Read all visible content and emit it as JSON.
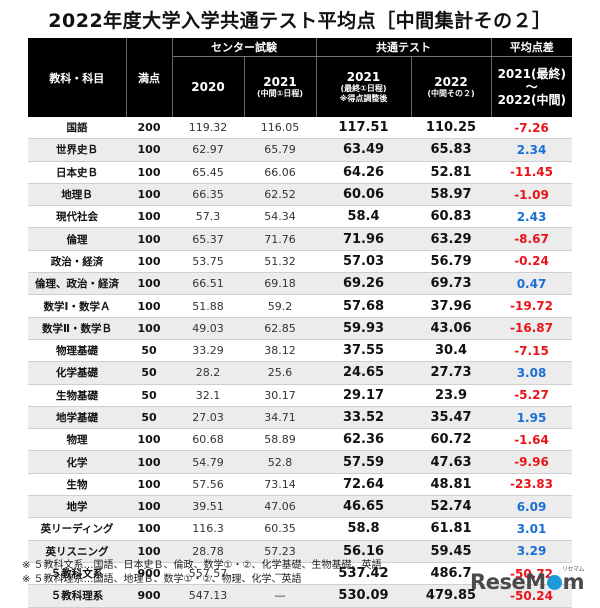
{
  "title": "2022年度大学入学共通テスト平均点［中間集計その２］",
  "header": {
    "subject": "教科・科目",
    "max_score": "満点",
    "center_group": "センター試験",
    "common_group": "共通テスト",
    "diff_group": "平均点差",
    "col_2020": "2020",
    "col_2021c": "2021",
    "col_2021c_sub": "(中間①日程)",
    "col_2021k": "2021",
    "col_2021k_sub1": "(最終①日程)",
    "col_2021k_sub2": "※得点調整後",
    "col_2022": "2022",
    "col_2022_sub": "(中間その２)",
    "diff_line1": "2021(最終)",
    "diff_line2": "〜",
    "diff_line3": "2022(中間)"
  },
  "rows": [
    {
      "subject": "国語",
      "max": "200",
      "c2020": "119.32",
      "c2021": "116.05",
      "k2021": "117.51",
      "k2022": "110.25",
      "diff": "-7.26",
      "sign": "neg"
    },
    {
      "subject": "世界史Ｂ",
      "max": "100",
      "c2020": "62.97",
      "c2021": "65.79",
      "k2021": "63.49",
      "k2022": "65.83",
      "diff": "2.34",
      "sign": "pos"
    },
    {
      "subject": "日本史Ｂ",
      "max": "100",
      "c2020": "65.45",
      "c2021": "66.06",
      "k2021": "64.26",
      "k2022": "52.81",
      "diff": "-11.45",
      "sign": "neg"
    },
    {
      "subject": "地理Ｂ",
      "max": "100",
      "c2020": "66.35",
      "c2021": "62.52",
      "k2021": "60.06",
      "k2022": "58.97",
      "diff": "-1.09",
      "sign": "neg"
    },
    {
      "subject": "現代社会",
      "max": "100",
      "c2020": "57.3",
      "c2021": "54.34",
      "k2021": "58.4",
      "k2022": "60.83",
      "diff": "2.43",
      "sign": "pos"
    },
    {
      "subject": "倫理",
      "max": "100",
      "c2020": "65.37",
      "c2021": "71.76",
      "k2021": "71.96",
      "k2022": "63.29",
      "diff": "-8.67",
      "sign": "neg"
    },
    {
      "subject": "政治・経済",
      "max": "100",
      "c2020": "53.75",
      "c2021": "51.32",
      "k2021": "57.03",
      "k2022": "56.79",
      "diff": "-0.24",
      "sign": "neg"
    },
    {
      "subject": "倫理、政治・経済",
      "max": "100",
      "c2020": "66.51",
      "c2021": "69.18",
      "k2021": "69.26",
      "k2022": "69.73",
      "diff": "0.47",
      "sign": "pos"
    },
    {
      "subject": "数学Ⅰ・数学Ａ",
      "max": "100",
      "c2020": "51.88",
      "c2021": "59.2",
      "k2021": "57.68",
      "k2022": "37.96",
      "diff": "-19.72",
      "sign": "neg"
    },
    {
      "subject": "数学Ⅱ・数学Ｂ",
      "max": "100",
      "c2020": "49.03",
      "c2021": "62.85",
      "k2021": "59.93",
      "k2022": "43.06",
      "diff": "-16.87",
      "sign": "neg"
    },
    {
      "subject": "物理基礎",
      "max": "50",
      "c2020": "33.29",
      "c2021": "38.12",
      "k2021": "37.55",
      "k2022": "30.4",
      "diff": "-7.15",
      "sign": "neg"
    },
    {
      "subject": "化学基礎",
      "max": "50",
      "c2020": "28.2",
      "c2021": "25.6",
      "k2021": "24.65",
      "k2022": "27.73",
      "diff": "3.08",
      "sign": "pos"
    },
    {
      "subject": "生物基礎",
      "max": "50",
      "c2020": "32.1",
      "c2021": "30.17",
      "k2021": "29.17",
      "k2022": "23.9",
      "diff": "-5.27",
      "sign": "neg"
    },
    {
      "subject": "地学基礎",
      "max": "50",
      "c2020": "27.03",
      "c2021": "34.71",
      "k2021": "33.52",
      "k2022": "35.47",
      "diff": "1.95",
      "sign": "pos"
    },
    {
      "subject": "物理",
      "max": "100",
      "c2020": "60.68",
      "c2021": "58.89",
      "k2021": "62.36",
      "k2022": "60.72",
      "diff": "-1.64",
      "sign": "neg"
    },
    {
      "subject": "化学",
      "max": "100",
      "c2020": "54.79",
      "c2021": "52.8",
      "k2021": "57.59",
      "k2022": "47.63",
      "diff": "-9.96",
      "sign": "neg"
    },
    {
      "subject": "生物",
      "max": "100",
      "c2020": "57.56",
      "c2021": "73.14",
      "k2021": "72.64",
      "k2022": "48.81",
      "diff": "-23.83",
      "sign": "neg"
    },
    {
      "subject": "地学",
      "max": "100",
      "c2020": "39.51",
      "c2021": "47.06",
      "k2021": "46.65",
      "k2022": "52.74",
      "diff": "6.09",
      "sign": "pos"
    },
    {
      "subject": "英リーディング",
      "max": "100",
      "c2020": "116.3",
      "c2021": "60.35",
      "k2021": "58.8",
      "k2022": "61.81",
      "diff": "3.01",
      "sign": "pos"
    },
    {
      "subject": "英リスニング",
      "max": "100",
      "c2020": "28.78",
      "c2021": "57.23",
      "k2021": "56.16",
      "k2022": "59.45",
      "diff": "3.29",
      "sign": "pos"
    },
    {
      "subject": "５教科文系",
      "max": "900",
      "c2020": "557.57",
      "c2021": "—",
      "k2021": "537.42",
      "k2022": "486.7",
      "diff": "-50.72",
      "sign": "neg"
    },
    {
      "subject": "５教科理系",
      "max": "900",
      "c2020": "547.13",
      "c2021": "—",
      "k2021": "530.09",
      "k2022": "479.85",
      "diff": "-50.24",
      "sign": "neg"
    }
  ],
  "notes": [
    "※ ５教科文系…国語、日本史Ｂ、倫政、数学①・②、化学基礎、生物基礎、英語",
    "※ ５教科理系…国語、地理Ｂ、数学①・②、物理、化学、英語"
  ],
  "logo": {
    "text_a": "Res",
    "text_b": "eM",
    "text_c": "m",
    "sub": "リセマム"
  },
  "colors": {
    "negative": "#e8141a",
    "positive": "#1a6fd6",
    "header_bg": "#000000"
  }
}
